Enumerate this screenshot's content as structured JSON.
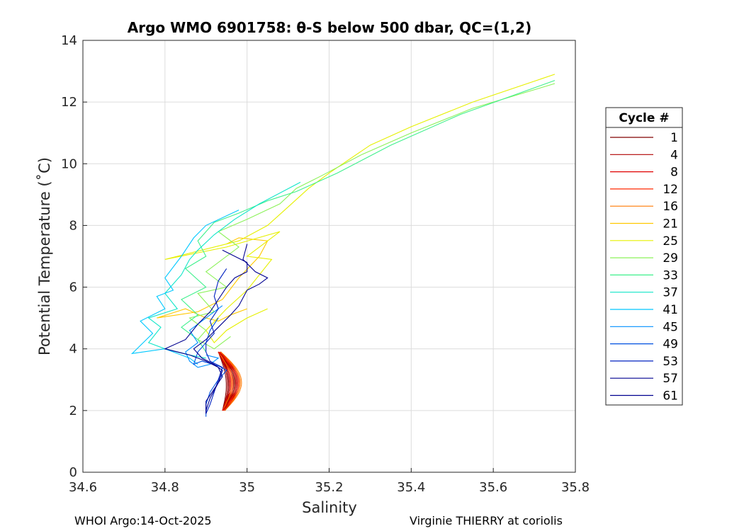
{
  "chart_data": {
    "type": "line",
    "title": "Argo WMO 6901758: θ-S below 500 dbar,  QC=(1,2)",
    "xlabel": "Salinity",
    "ylabel": "Potential Temperature (˚C)",
    "xlim": [
      34.6,
      35.8
    ],
    "ylim": [
      0,
      14
    ],
    "xticks": [
      "34.6",
      "34.8",
      "35",
      "35.2",
      "35.4",
      "35.6",
      "35.8"
    ],
    "yticks": [
      "0",
      "2",
      "4",
      "6",
      "8",
      "10",
      "12",
      "14"
    ],
    "grid": true,
    "legend": {
      "title": "Cycle #",
      "position": "right",
      "entries": [
        {
          "label": "1",
          "color": "#800000"
        },
        {
          "label": "4",
          "color": "#b00000"
        },
        {
          "label": "8",
          "color": "#e00000"
        },
        {
          "label": "12",
          "color": "#ff2a00"
        },
        {
          "label": "16",
          "color": "#ff7a00"
        },
        {
          "label": "21",
          "color": "#ffc800"
        },
        {
          "label": "25",
          "color": "#e6f000"
        },
        {
          "label": "29",
          "color": "#8cf25a"
        },
        {
          "label": "33",
          "color": "#3ff08c"
        },
        {
          "label": "37",
          "color": "#10e6c8"
        },
        {
          "label": "41",
          "color": "#00c8ff"
        },
        {
          "label": "45",
          "color": "#0090ff"
        },
        {
          "label": "49",
          "color": "#0050e0"
        },
        {
          "label": "53",
          "color": "#0020c0"
        },
        {
          "label": "57",
          "color": "#000090"
        },
        {
          "label": "61",
          "color": "#00008f"
        }
      ]
    },
    "series": [
      {
        "color": "#ffc800",
        "points": [
          [
            35.0,
            5.3
          ],
          [
            34.96,
            5.1
          ],
          [
            34.93,
            4.9
          ],
          [
            34.9,
            5.0
          ],
          [
            34.85,
            5.3
          ],
          [
            34.78,
            5.0
          ],
          [
            34.88,
            5.2
          ],
          [
            34.94,
            5.6
          ],
          [
            34.98,
            6.3
          ],
          [
            35.03,
            7.0
          ],
          [
            35.05,
            7.5
          ],
          [
            34.98,
            7.6
          ],
          [
            34.95,
            7.4
          ]
        ]
      },
      {
        "color": "#e6f000",
        "points": [
          [
            35.75,
            12.9
          ],
          [
            35.55,
            12.0
          ],
          [
            35.4,
            11.2
          ],
          [
            35.3,
            10.6
          ],
          [
            35.2,
            9.7
          ],
          [
            35.15,
            9.2
          ],
          [
            35.1,
            8.6
          ],
          [
            35.05,
            8.0
          ],
          [
            34.98,
            7.5
          ],
          [
            34.8,
            6.9
          ],
          [
            34.95,
            7.3
          ],
          [
            35.08,
            7.8
          ],
          [
            35.0,
            7.0
          ],
          [
            35.06,
            6.9
          ],
          [
            35.0,
            5.9
          ],
          [
            34.95,
            5.3
          ],
          [
            34.9,
            4.6
          ],
          [
            34.92,
            4.2
          ],
          [
            34.95,
            4.6
          ],
          [
            35.0,
            5.0
          ],
          [
            35.05,
            5.3
          ]
        ]
      },
      {
        "color": "#8cf25a",
        "points": [
          [
            35.75,
            12.6
          ],
          [
            35.55,
            11.8
          ],
          [
            35.4,
            11.0
          ],
          [
            35.28,
            10.3
          ],
          [
            35.18,
            9.6
          ],
          [
            35.12,
            9.2
          ],
          [
            35.08,
            8.7
          ],
          [
            35.0,
            8.2
          ],
          [
            34.93,
            7.8
          ],
          [
            34.98,
            7.3
          ],
          [
            34.9,
            6.5
          ],
          [
            34.95,
            6.0
          ],
          [
            34.88,
            5.8
          ],
          [
            34.92,
            5.2
          ],
          [
            34.86,
            5.0
          ],
          [
            34.9,
            4.6
          ],
          [
            34.88,
            4.3
          ],
          [
            34.92,
            4.0
          ],
          [
            34.96,
            4.4
          ]
        ]
      },
      {
        "color": "#3ff08c",
        "points": [
          [
            35.75,
            12.7
          ],
          [
            35.52,
            11.6
          ],
          [
            35.35,
            10.6
          ],
          [
            35.22,
            9.7
          ],
          [
            35.12,
            9.1
          ],
          [
            35.05,
            8.8
          ],
          [
            34.98,
            8.4
          ],
          [
            34.92,
            8.1
          ],
          [
            34.88,
            7.5
          ],
          [
            34.9,
            7.0
          ],
          [
            34.85,
            6.6
          ],
          [
            34.9,
            6.0
          ],
          [
            34.84,
            5.6
          ],
          [
            34.88,
            5.1
          ],
          [
            34.84,
            4.7
          ],
          [
            34.88,
            4.3
          ],
          [
            34.9,
            3.9
          ]
        ]
      },
      {
        "color": "#10e6c8",
        "points": [
          [
            35.13,
            9.4
          ],
          [
            35.03,
            8.7
          ],
          [
            34.97,
            8.2
          ],
          [
            34.92,
            7.7
          ],
          [
            34.88,
            7.2
          ],
          [
            34.86,
            6.9
          ],
          [
            34.84,
            6.4
          ],
          [
            34.8,
            5.8
          ],
          [
            34.83,
            5.3
          ],
          [
            34.76,
            5.0
          ],
          [
            34.79,
            4.7
          ],
          [
            34.76,
            4.2
          ],
          [
            34.8,
            4.0
          ],
          [
            34.86,
            3.8
          ],
          [
            34.9,
            3.7
          ]
        ]
      },
      {
        "color": "#00c8ff",
        "points": [
          [
            34.98,
            8.5
          ],
          [
            34.9,
            8.0
          ],
          [
            34.87,
            7.6
          ],
          [
            34.84,
            7.0
          ],
          [
            34.8,
            6.3
          ],
          [
            34.82,
            5.9
          ],
          [
            34.78,
            5.7
          ],
          [
            34.8,
            5.3
          ],
          [
            34.74,
            4.9
          ],
          [
            34.77,
            4.5
          ],
          [
            34.72,
            3.85
          ],
          [
            34.8,
            4.0
          ],
          [
            34.86,
            3.7
          ],
          [
            34.88,
            3.5
          ]
        ]
      },
      {
        "color": "#0090ff",
        "points": [
          [
            34.94,
            5.4
          ],
          [
            34.9,
            5.0
          ],
          [
            34.86,
            4.6
          ],
          [
            34.88,
            4.2
          ],
          [
            34.85,
            3.9
          ],
          [
            34.86,
            3.6
          ],
          [
            34.88,
            3.4
          ],
          [
            34.91,
            3.5
          ],
          [
            34.93,
            3.7
          ],
          [
            34.9,
            3.8
          ]
        ]
      },
      {
        "color": "#0050e0",
        "points": [
          [
            34.93,
            5.0
          ],
          [
            34.91,
            4.6
          ],
          [
            34.9,
            4.2
          ],
          [
            34.88,
            3.9
          ],
          [
            34.87,
            3.5
          ],
          [
            34.89,
            3.6
          ],
          [
            34.93,
            3.45
          ],
          [
            34.95,
            3.3
          ],
          [
            34.93,
            3.0
          ],
          [
            34.91,
            2.6
          ],
          [
            34.9,
            2.2
          ],
          [
            34.9,
            1.8
          ]
        ]
      },
      {
        "color": "#0020c0",
        "points": [
          [
            34.95,
            6.6
          ],
          [
            34.93,
            6.2
          ],
          [
            34.92,
            5.7
          ],
          [
            34.93,
            5.3
          ],
          [
            34.91,
            4.9
          ],
          [
            34.92,
            4.5
          ],
          [
            34.9,
            4.2
          ],
          [
            34.9,
            3.9
          ],
          [
            34.91,
            3.6
          ],
          [
            34.94,
            3.4
          ],
          [
            34.93,
            3.0
          ],
          [
            34.92,
            2.6
          ],
          [
            34.91,
            2.2
          ],
          [
            34.9,
            1.9
          ]
        ]
      },
      {
        "color": "#000090",
        "points": [
          [
            35.0,
            7.4
          ],
          [
            34.99,
            6.9
          ],
          [
            35.02,
            6.5
          ],
          [
            35.05,
            6.3
          ],
          [
            35.03,
            6.1
          ],
          [
            35.0,
            5.9
          ],
          [
            34.98,
            5.4
          ],
          [
            34.96,
            5.1
          ],
          [
            34.93,
            4.7
          ],
          [
            34.9,
            4.3
          ],
          [
            34.87,
            4.0
          ],
          [
            34.89,
            3.7
          ],
          [
            34.92,
            3.5
          ],
          [
            34.94,
            3.3
          ],
          [
            34.93,
            2.9
          ],
          [
            34.91,
            2.4
          ],
          [
            34.9,
            2.0
          ]
        ]
      },
      {
        "color": "#00008f",
        "points": [
          [
            34.94,
            7.2
          ],
          [
            34.97,
            7.0
          ],
          [
            35.0,
            6.8
          ],
          [
            35.0,
            6.5
          ],
          [
            34.97,
            6.3
          ],
          [
            34.95,
            6.0
          ],
          [
            34.93,
            5.6
          ],
          [
            34.91,
            5.2
          ],
          [
            34.88,
            4.8
          ],
          [
            34.85,
            4.3
          ],
          [
            34.8,
            4.0
          ],
          [
            34.86,
            3.8
          ],
          [
            34.9,
            3.6
          ],
          [
            34.93,
            3.4
          ],
          [
            34.94,
            3.1
          ],
          [
            34.92,
            2.7
          ],
          [
            34.9,
            2.3
          ],
          [
            34.9,
            1.9
          ]
        ]
      }
    ],
    "loop_cluster": {
      "description_colors": [
        "#800000",
        "#b00000",
        "#e00000",
        "#ff2a00",
        "#ff7a00"
      ],
      "center": [
        34.95,
        3.0
      ]
    }
  },
  "footer": {
    "left": "WHOI Argo:14-Oct-2025",
    "right": "Virginie THIERRY at coriolis"
  }
}
